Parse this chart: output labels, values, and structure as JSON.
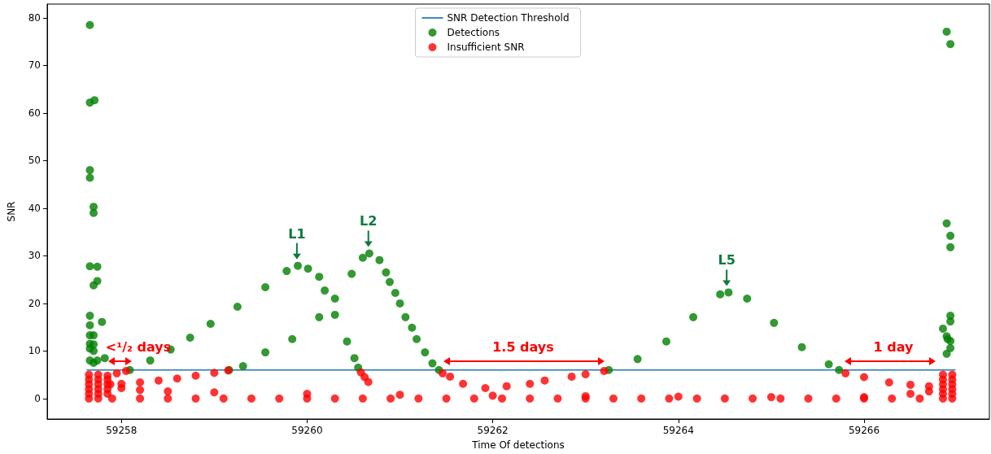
{
  "chart_data": {
    "type": "scatter",
    "xlabel": "Time Of detections",
    "ylabel": "SNR",
    "xlim": [
      59257.2,
      59267.35
    ],
    "ylim": [
      -4.3,
      82.9
    ],
    "xticks": [
      59258,
      59260,
      59262,
      59264,
      59266
    ],
    "yticks": [
      0,
      10,
      20,
      30,
      40,
      50,
      60,
      70,
      80
    ],
    "grid": false,
    "legend": "top",
    "marker": "circle",
    "series": [
      {
        "name": "SNR Detection Threshold",
        "type": "line",
        "marker": "none",
        "line_style": "solid",
        "color": "#1f77b4",
        "x": [
          59257.63,
          59266.98
        ],
        "values": [
          6,
          6
        ]
      },
      {
        "name": "Detections",
        "color": "#008000",
        "x": [
          59257.66,
          59257.66,
          59257.71,
          59257.66,
          59257.66,
          59257.7,
          59257.7,
          59257.66,
          59257.74,
          59257.74,
          59257.7,
          59257.66,
          59257.79,
          59257.66,
          59257.66,
          59257.7,
          59257.66,
          59257.7,
          59257.66,
          59257.7,
          59257.66,
          59257.74,
          59257.82,
          59257.7,
          59258.09,
          59258.31,
          59258.53,
          59258.74,
          59258.96,
          59259.25,
          59259.55,
          59259.78,
          59259.9,
          59260.01,
          59260.13,
          59260.19,
          59260.3,
          59260.43,
          59260.51,
          59260.55,
          59259.16,
          59259.31,
          59259.55,
          59259.84,
          59260.13,
          59260.3,
          59260.48,
          59260.6,
          59260.67,
          59260.78,
          59260.85,
          59260.89,
          59260.95,
          59261.0,
          59261.06,
          59261.13,
          59261.18,
          59261.27,
          59261.35,
          59261.42,
          59263.25,
          59263.56,
          59263.87,
          59264.16,
          59264.45,
          59264.54,
          59264.74,
          59265.03,
          59265.33,
          59265.62,
          59265.73,
          59266.89,
          59266.93,
          59266.89,
          59266.93,
          59266.93,
          59266.93,
          59266.93,
          59266.85,
          59266.89,
          59266.93,
          59266.9,
          59266.93,
          59266.89
        ],
        "values": [
          78.5,
          62.2,
          62.7,
          48.0,
          46.4,
          40.3,
          39.0,
          27.8,
          27.7,
          24.7,
          23.8,
          17.4,
          16.1,
          15.4,
          13.3,
          13.3,
          11.5,
          11.4,
          10.5,
          10.0,
          8.0,
          8.0,
          8.5,
          7.5,
          6.0,
          8.0,
          10.3,
          12.8,
          15.7,
          19.3,
          23.4,
          26.8,
          27.9,
          27.3,
          25.6,
          22.7,
          17.6,
          12.0,
          8.5,
          6.5,
          6.0,
          6.8,
          9.7,
          12.5,
          17.1,
          21.0,
          26.2,
          29.6,
          30.5,
          29.1,
          26.5,
          24.5,
          22.2,
          20.0,
          17.1,
          14.9,
          12.5,
          9.7,
          7.4,
          6.0,
          6.0,
          8.3,
          12.0,
          17.1,
          21.9,
          22.3,
          21.0,
          15.9,
          10.8,
          7.2,
          6.0,
          77.1,
          74.5,
          36.8,
          34.2,
          31.8,
          17.4,
          16.2,
          14.7,
          13.1,
          12.1,
          12.5,
          10.6,
          9.4
        ]
      },
      {
        "name": "Insufficient SNR",
        "color": "#ff0000",
        "x": [
          59260.58,
          59260.62,
          59260.66,
          59257.85,
          59257.95,
          59258.05,
          59257.88,
          59258.0,
          59258.2,
          59258.4,
          59258.6,
          59258.8,
          59259.0,
          59259.15,
          59261.46,
          59261.54,
          59261.68,
          59261.92,
          59262.15,
          59262.4,
          59262.56,
          59262.85,
          59263.0,
          59263.2,
          59265.8,
          59266.0,
          59266.27,
          59266.5,
          59266.7,
          59258.0,
          59258.2,
          59258.5,
          59259.0,
          59260.0,
          59261.0,
          59262.0,
          59263.0,
          59264.0,
          59265.0,
          59266.0,
          59266.5,
          59266.7,
          59257.9,
          59258.2,
          59258.5,
          59258.8,
          59259.1,
          59259.4,
          59259.7,
          59260.0,
          59260.3,
          59260.6,
          59260.9,
          59261.2,
          59261.5,
          59261.8,
          59262.1,
          59262.4,
          59262.7,
          59263.0,
          59263.3,
          59263.6,
          59263.9,
          59264.2,
          59264.5,
          59264.8,
          59265.1,
          59265.4,
          59265.7,
          59266.0,
          59266.3,
          59266.6,
          59257.65,
          59257.65,
          59257.65,
          59257.65,
          59257.65,
          59257.65,
          59257.75,
          59257.75,
          59257.75,
          59257.75,
          59257.75,
          59257.75,
          59257.85,
          59257.85,
          59257.85,
          59257.85,
          59266.85,
          59266.85,
          59266.85,
          59266.85,
          59266.85,
          59266.85,
          59266.95,
          59266.95,
          59266.95,
          59266.95,
          59266.95,
          59266.95
        ],
        "values": [
          5.5,
          4.5,
          3.5,
          4.8,
          5.3,
          5.8,
          3.0,
          3.1,
          3.4,
          3.8,
          4.2,
          4.8,
          5.4,
          5.9,
          5.3,
          4.6,
          3.1,
          2.2,
          2.6,
          3.1,
          3.8,
          4.6,
          5.1,
          5.8,
          5.3,
          4.5,
          3.4,
          2.9,
          2.6,
          2.2,
          1.8,
          1.5,
          1.3,
          1.0,
          0.8,
          0.6,
          0.5,
          0.4,
          0.3,
          0.3,
          1.0,
          1.5,
          0,
          0,
          0,
          0,
          0,
          0,
          0,
          0,
          0,
          0,
          0,
          0,
          0,
          0,
          0,
          0,
          0,
          0,
          0,
          0,
          0,
          0,
          0,
          0,
          0,
          0,
          0,
          0,
          0,
          0,
          0,
          1,
          2,
          3,
          4,
          5,
          0,
          1,
          2,
          3,
          4,
          5,
          1,
          2,
          3,
          4,
          0,
          1,
          2,
          3,
          4,
          5,
          0,
          1,
          2,
          3,
          4,
          5
        ]
      }
    ],
    "annotations": [
      {
        "text": "L1",
        "x": 59259.89,
        "y": 27.9
      },
      {
        "text": "L2",
        "x": 59260.66,
        "y": 30.5
      },
      {
        "text": "L5",
        "x": 59264.52,
        "y": 22.3
      },
      "<¹/₂ days",
      "1.5 days",
      "1 day"
    ]
  }
}
